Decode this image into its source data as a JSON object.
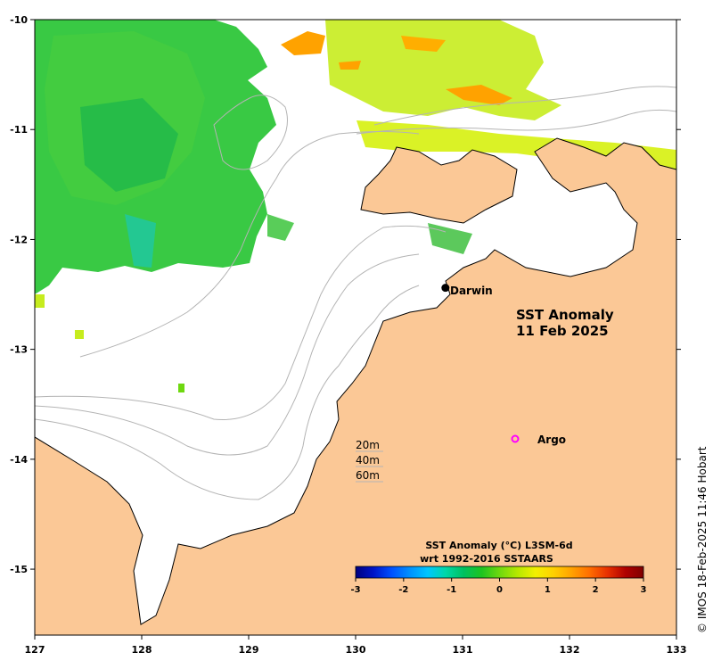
{
  "map": {
    "title_line1": "SST Anomaly",
    "title_line2": "11 Feb 2025",
    "lon_range": [
      127,
      133
    ],
    "lat_range": [
      -15.6,
      -10
    ],
    "x_ticks": [
      "127",
      "128",
      "129",
      "130",
      "131",
      "132",
      "133"
    ],
    "y_ticks": [
      "-10",
      "-11",
      "-12",
      "-13",
      "-14",
      "-15"
    ],
    "land_color": "#fbc896",
    "bathymetry_color": "#b4b4b4"
  },
  "places": {
    "darwin": {
      "label": "Darwin",
      "lon": 130.84,
      "lat": -12.44
    },
    "argo": {
      "label": "Argo",
      "lon": 131.5,
      "lat": -13.8,
      "color": "#ff00ff"
    }
  },
  "depth_contours": [
    "20m",
    "40m",
    "60m"
  ],
  "colorbar": {
    "title_line1": "SST Anomaly (°C) L3SM-6d",
    "title_line2": "wrt 1992-2016 SSTAARS",
    "min": -3,
    "max": 3,
    "ticks": [
      "-3",
      "-2",
      "-1",
      "0",
      "1",
      "2",
      "3"
    ],
    "colors": [
      "#00007f",
      "#0015c9",
      "#0050ff",
      "#0090ff",
      "#00c6ff",
      "#00d8a8",
      "#00c060",
      "#1cc420",
      "#6ed80f",
      "#b6e800",
      "#f2f000",
      "#ffd000",
      "#ffa200",
      "#ff6e00",
      "#e83000",
      "#b00000",
      "#7f0000"
    ]
  },
  "credit": "© IMOS 18-Feb-2025 11:46 Hobart"
}
